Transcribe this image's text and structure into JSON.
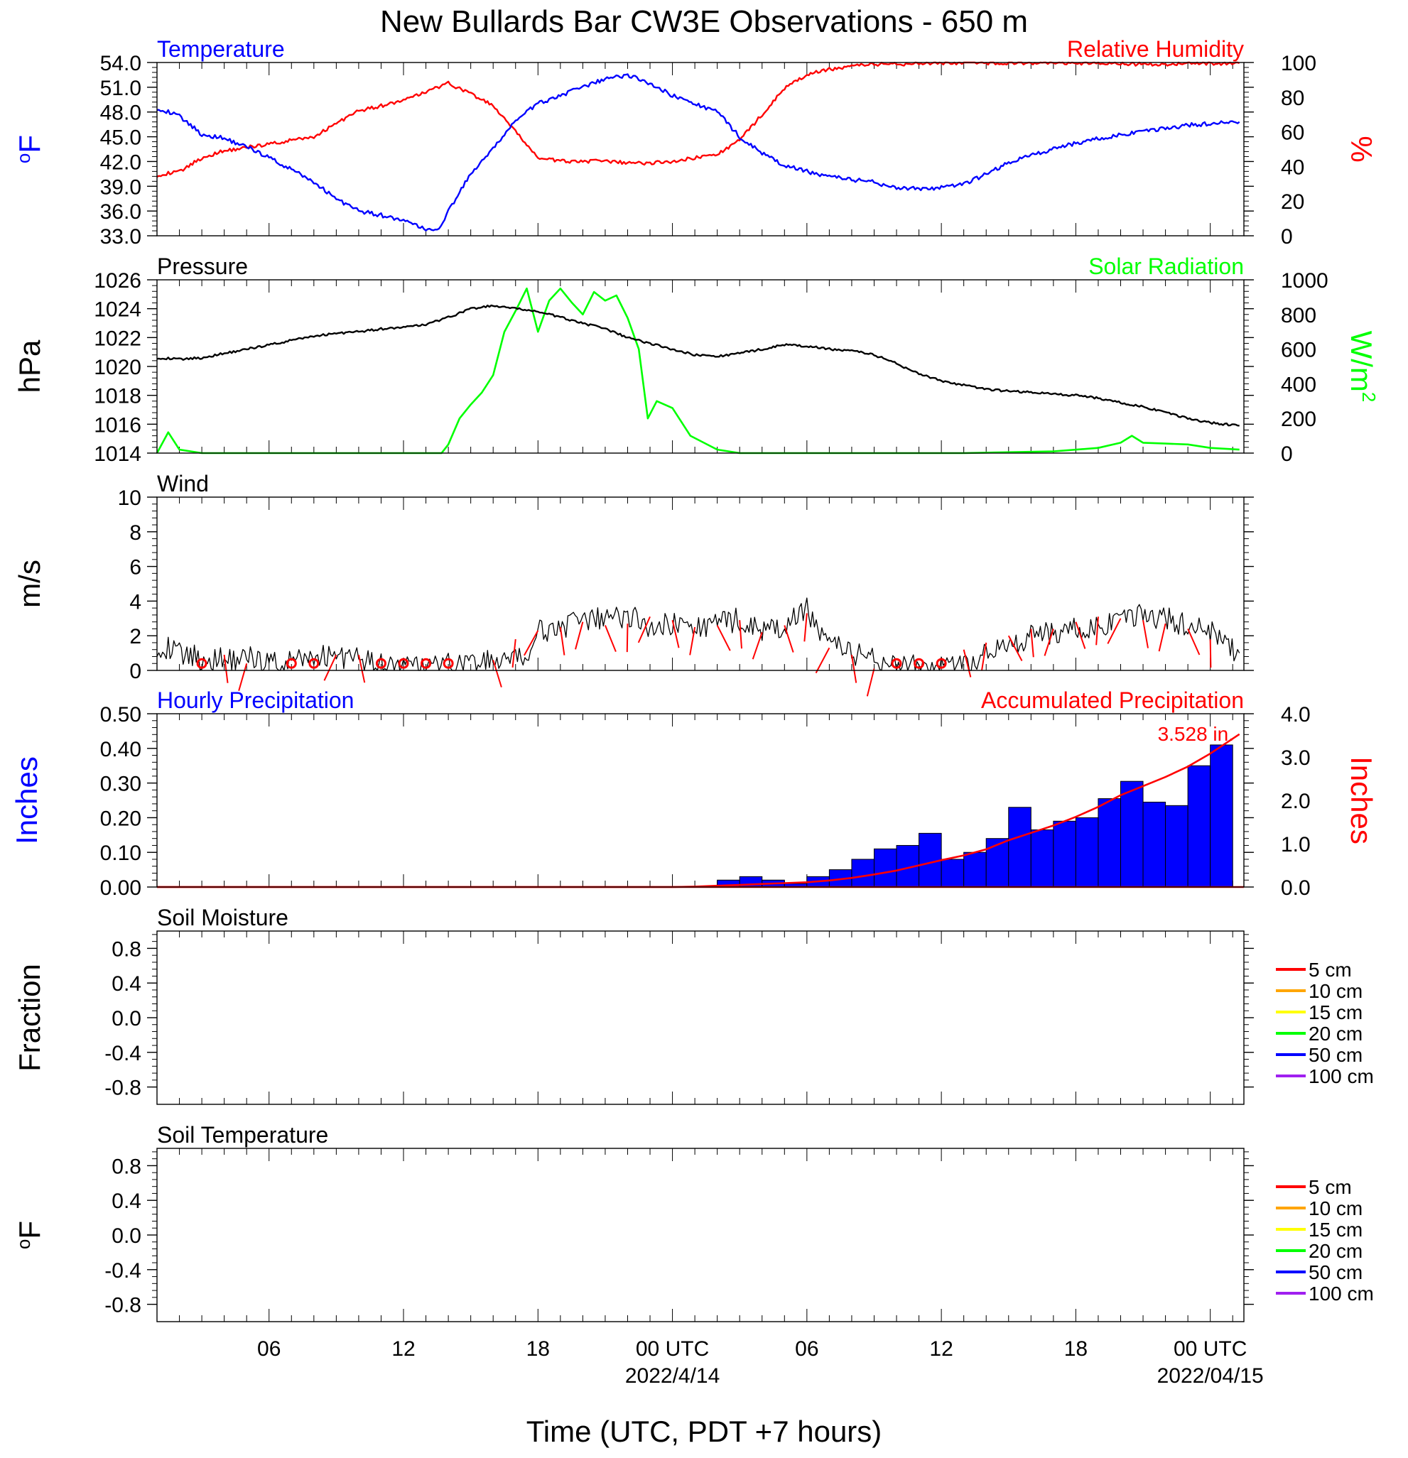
{
  "title": "New Bullards Bar CW3E Observations - 650 m",
  "xaxis": {
    "label": "Time (UTC, PDT +7 hours)",
    "range_hours": [
      0,
      48.5
    ],
    "ticks": [
      {
        "h": 5,
        "label": "06",
        "date": ""
      },
      {
        "h": 11,
        "label": "12",
        "date": ""
      },
      {
        "h": 17,
        "label": "18",
        "date": ""
      },
      {
        "h": 23,
        "label": "00 UTC",
        "date": "2022/4/14"
      },
      {
        "h": 29,
        "label": "06",
        "date": ""
      },
      {
        "h": 35,
        "label": "12",
        "date": ""
      },
      {
        "h": 41,
        "label": "18",
        "date": ""
      },
      {
        "h": 47,
        "label": "00 UTC",
        "date": "2022/04/15"
      }
    ]
  },
  "colors": {
    "temperature": "#0000ff",
    "humidity": "#ff0000",
    "pressure": "#000000",
    "solar": "#00ff00",
    "wind": "#000000",
    "hourly": "#0000ff",
    "accum": "#ff0000"
  },
  "chart_data": [
    {
      "type": "line",
      "title_left": "Temperature",
      "title_right": "Relative Humidity",
      "ylabel_left": "oF",
      "ylabel_right": "%",
      "ylim_left": [
        33,
        54
      ],
      "yticks_left": [
        "33.0",
        "36.0",
        "39.0",
        "42.0",
        "45.0",
        "48.0",
        "51.0",
        "54.0"
      ],
      "ylim_right": [
        0,
        100
      ],
      "yticks_right": [
        "0",
        "20",
        "40",
        "60",
        "80",
        "100"
      ],
      "series": [
        {
          "name": "Temperature",
          "axis": "left",
          "x": [
            0,
            1,
            2,
            3,
            4,
            5,
            6,
            7,
            8,
            9,
            10,
            11,
            12,
            12.5,
            13,
            14,
            15,
            16,
            17,
            18,
            19,
            20,
            21,
            22,
            23,
            24,
            25,
            26,
            27,
            28,
            29,
            30,
            31,
            32,
            33,
            34,
            35,
            36,
            37,
            38,
            39,
            40,
            41,
            42,
            43,
            44,
            45,
            46,
            47,
            48.3
          ],
          "y": [
            48.5,
            47.5,
            45.3,
            44.8,
            43.8,
            42.5,
            41,
            39.5,
            37.5,
            36,
            35.5,
            34.8,
            33.8,
            33.5,
            36,
            40.5,
            43.5,
            47,
            49,
            50,
            51,
            52,
            52.5,
            51.5,
            50,
            49,
            48,
            45,
            43,
            41.5,
            40.8,
            40.2,
            39.8,
            39.5,
            38.8,
            38.7,
            38.8,
            39.2,
            40.5,
            41.8,
            42.8,
            43.5,
            44.2,
            44.8,
            45.2,
            45.6,
            46,
            46.4,
            46.6,
            46.8
          ]
        },
        {
          "name": "Relative Humidity",
          "axis": "right",
          "x": [
            0,
            1,
            2,
            3,
            4,
            5,
            6,
            7,
            8,
            9,
            10,
            11,
            12,
            13,
            14,
            15,
            16,
            17,
            18,
            19,
            20,
            21,
            22,
            23,
            24,
            25,
            26,
            27,
            28,
            29,
            30,
            31,
            32,
            33,
            34,
            35,
            36,
            38,
            40,
            42,
            44,
            46,
            48.3
          ],
          "y": [
            35,
            37,
            45,
            49,
            51,
            53,
            55,
            57,
            65,
            72,
            75,
            78,
            83,
            88,
            82,
            75,
            60,
            45,
            43,
            43,
            43,
            42,
            42,
            43,
            45,
            47,
            55,
            70,
            85,
            93,
            96,
            98,
            99,
            99,
            99.5,
            99.6,
            99.7,
            99.8,
            99.8,
            99.5,
            99,
            99.3,
            99.6
          ]
        }
      ]
    },
    {
      "type": "line",
      "title_left": "Pressure",
      "title_right": "Solar Radiation",
      "ylabel_left": "hPa",
      "ylabel_right": "W/m2",
      "ylim_left": [
        1014,
        1026
      ],
      "yticks_left": [
        "1014",
        "1016",
        "1018",
        "1020",
        "1022",
        "1024",
        "1026"
      ],
      "ylim_right": [
        0,
        1000
      ],
      "yticks_right": [
        "0",
        "200",
        "400",
        "600",
        "800",
        "1000"
      ],
      "series": [
        {
          "name": "Pressure",
          "axis": "left",
          "x": [
            0,
            1,
            2,
            3,
            4,
            5,
            6,
            7,
            8,
            9,
            10,
            11,
            12,
            13,
            14,
            15,
            16,
            17,
            18,
            19,
            20,
            21,
            22,
            23,
            24,
            25,
            26,
            27,
            28,
            29,
            30,
            31,
            32,
            33,
            34,
            35,
            36,
            37,
            38,
            39,
            40,
            41,
            42,
            43,
            44,
            45,
            46,
            47,
            48.3
          ],
          "y": [
            1020.6,
            1020.5,
            1020.6,
            1020.9,
            1021.2,
            1021.5,
            1021.8,
            1022.1,
            1022.3,
            1022.4,
            1022.6,
            1022.7,
            1022.9,
            1023.4,
            1024,
            1024.2,
            1024,
            1023.8,
            1023.4,
            1023,
            1022.6,
            1022,
            1021.6,
            1021.2,
            1020.8,
            1020.7,
            1020.9,
            1021.2,
            1021.5,
            1021.4,
            1021.2,
            1021.1,
            1020.8,
            1020.2,
            1019.5,
            1019,
            1018.7,
            1018.4,
            1018.3,
            1018.2,
            1018.1,
            1018,
            1017.8,
            1017.5,
            1017.2,
            1016.8,
            1016.4,
            1016.1,
            1015.9
          ]
        },
        {
          "name": "Solar Radiation",
          "axis": "right",
          "x": [
            0,
            0.5,
            1,
            2,
            12,
            12.7,
            13,
            13.5,
            14,
            14.5,
            15,
            15.5,
            16,
            16.5,
            17,
            17.5,
            18,
            18.5,
            19,
            19.5,
            20,
            20.5,
            21,
            21.5,
            21.9,
            22.3,
            23,
            23.8,
            25,
            26,
            30,
            36,
            40,
            42,
            43,
            43.5,
            44,
            45,
            46,
            47,
            48.3
          ],
          "y": [
            0,
            120,
            20,
            0,
            0,
            0,
            50,
            200,
            280,
            350,
            450,
            700,
            820,
            950,
            700,
            880,
            950,
            870,
            800,
            930,
            880,
            910,
            780,
            600,
            200,
            300,
            260,
            100,
            20,
            0,
            0,
            0,
            10,
            30,
            60,
            100,
            60,
            55,
            50,
            30,
            20
          ]
        }
      ]
    },
    {
      "type": "line",
      "title_left": "Wind",
      "ylabel_left": "m/s",
      "ylim_left": [
        0,
        10
      ],
      "yticks_left": [
        "0",
        "2",
        "4",
        "6",
        "8",
        "10"
      ],
      "series": [
        {
          "name": "Wind",
          "axis": "left",
          "x": [
            0,
            1,
            2,
            3,
            4,
            5,
            6,
            7,
            8,
            9,
            10,
            11,
            12,
            13,
            14,
            15,
            16,
            16.5,
            17,
            18,
            19,
            20,
            21,
            22,
            23,
            24,
            25,
            26,
            27,
            28,
            29,
            30,
            31,
            32,
            33,
            34,
            35,
            36,
            36.5,
            37,
            38,
            39,
            40,
            41,
            42,
            43,
            44,
            45,
            46,
            47,
            48.3
          ],
          "y": [
            1.5,
            1,
            0.7,
            0.6,
            0.8,
            0.5,
            0.4,
            0.8,
            0.9,
            0.6,
            0.3,
            0.2,
            0.2,
            0.3,
            0.4,
            0.5,
            0.6,
            0.7,
            2.2,
            2.5,
            2.8,
            3,
            3.2,
            2.6,
            2.7,
            2.5,
            2.6,
            3,
            2.2,
            2.5,
            3.5,
            1.6,
            1,
            0.6,
            0.4,
            0.2,
            0.1,
            0.2,
            0.3,
            1,
            1.4,
            2,
            2.1,
            2.5,
            2.4,
            2.8,
            3.2,
            3,
            2.6,
            2.2,
            1
          ]
        },
        {
          "name": "wind barbs",
          "axis": "left",
          "x": [
            2,
            3,
            4,
            6,
            7,
            8,
            9,
            10,
            11,
            12,
            13,
            15,
            16,
            17,
            18,
            19,
            20,
            21,
            22,
            23,
            24,
            25,
            26,
            27,
            28,
            29,
            30,
            31,
            32,
            33,
            34,
            35,
            36,
            37,
            38,
            39,
            40,
            41,
            42,
            43,
            44,
            45,
            46,
            47
          ],
          "y": [
            0.4,
            0.9,
            0.4,
            0.5,
            0.4,
            0.9,
            0.9,
            0.2,
            0.2,
            0.3,
            0.4,
            0.6,
            1.8,
            2.3,
            2.5,
            2.8,
            2.6,
            2.7,
            3.1,
            2.9,
            2.5,
            2.6,
            2.9,
            2.2,
            2.6,
            3.3,
            1.3,
            0.9,
            0.1,
            0.1,
            0.2,
            0.3,
            1.2,
            1.6,
            2,
            2.4,
            2.4,
            2.8,
            3.1,
            3,
            2.9,
            2.7,
            2.4,
            1.8
          ],
          "calm_x": [
            2,
            6,
            7,
            10,
            11,
            12,
            13,
            33,
            34,
            35
          ]
        }
      ]
    },
    {
      "type": "bar",
      "title_left": "Hourly Precipitation",
      "title_right": "Accumulated Precipitation",
      "annotation": "3.528 in.",
      "ylabel_left": "Inches",
      "ylabel_right": "Inches",
      "ylim_left": [
        0,
        0.5
      ],
      "yticks_left": [
        "0.00",
        "0.10",
        "0.20",
        "0.30",
        "0.40",
        "0.50"
      ],
      "ylim_right": [
        0,
        4
      ],
      "yticks_right": [
        "0.0",
        "1.0",
        "2.0",
        "3.0",
        "4.0"
      ],
      "bar_start_hours": [
        25,
        26,
        27,
        28,
        29,
        30,
        31,
        32,
        33,
        34,
        35,
        36,
        37,
        38,
        39,
        40,
        41,
        42,
        43,
        44,
        45,
        46,
        47
      ],
      "hourly": [
        0.02,
        0.03,
        0.02,
        0.01,
        0.03,
        0.05,
        0.08,
        0.11,
        0.12,
        0.155,
        0.08,
        0.1,
        0.14,
        0.23,
        0.165,
        0.19,
        0.2,
        0.255,
        0.305,
        0.245,
        0.235,
        0.35,
        0.41
      ],
      "accumulated_x": [
        0,
        23,
        24,
        25,
        26,
        27,
        28,
        29,
        30,
        31,
        32,
        33,
        34,
        35,
        36,
        37,
        38,
        39,
        40,
        41,
        42,
        43,
        44,
        45,
        46,
        47,
        48.3
      ],
      "accumulated": [
        0,
        0,
        0.01,
        0.03,
        0.05,
        0.07,
        0.09,
        0.11,
        0.15,
        0.21,
        0.29,
        0.38,
        0.5,
        0.62,
        0.73,
        0.87,
        1.08,
        1.25,
        1.42,
        1.62,
        1.85,
        2.12,
        2.33,
        2.54,
        2.78,
        3.08,
        3.528
      ]
    },
    {
      "type": "line",
      "title_left": "Soil Moisture",
      "ylabel_left": "Fraction",
      "ylim_left": [
        -1,
        1
      ],
      "yticks_left": [
        "-0.8",
        "-0.4",
        "0.0",
        "0.4",
        "0.8"
      ],
      "legend": [
        {
          "label": "5 cm",
          "color": "#ff0000"
        },
        {
          "label": "10 cm",
          "color": "#ffa500"
        },
        {
          "label": "15 cm",
          "color": "#ffff00"
        },
        {
          "label": "20 cm",
          "color": "#00ff00"
        },
        {
          "label": "50 cm",
          "color": "#0000ff"
        },
        {
          "label": "100 cm",
          "color": "#a020f0"
        }
      ],
      "series": []
    },
    {
      "type": "line",
      "title_left": "Soil Temperature",
      "ylabel_left": "oF",
      "ylim_left": [
        -1,
        1
      ],
      "yticks_left": [
        "-0.8",
        "-0.4",
        "0.0",
        "0.4",
        "0.8"
      ],
      "legend": [
        {
          "label": "5 cm",
          "color": "#ff0000"
        },
        {
          "label": "10 cm",
          "color": "#ffa500"
        },
        {
          "label": "15 cm",
          "color": "#ffff00"
        },
        {
          "label": "20 cm",
          "color": "#00ff00"
        },
        {
          "label": "50 cm",
          "color": "#0000ff"
        },
        {
          "label": "100 cm",
          "color": "#a020f0"
        }
      ],
      "series": []
    }
  ]
}
